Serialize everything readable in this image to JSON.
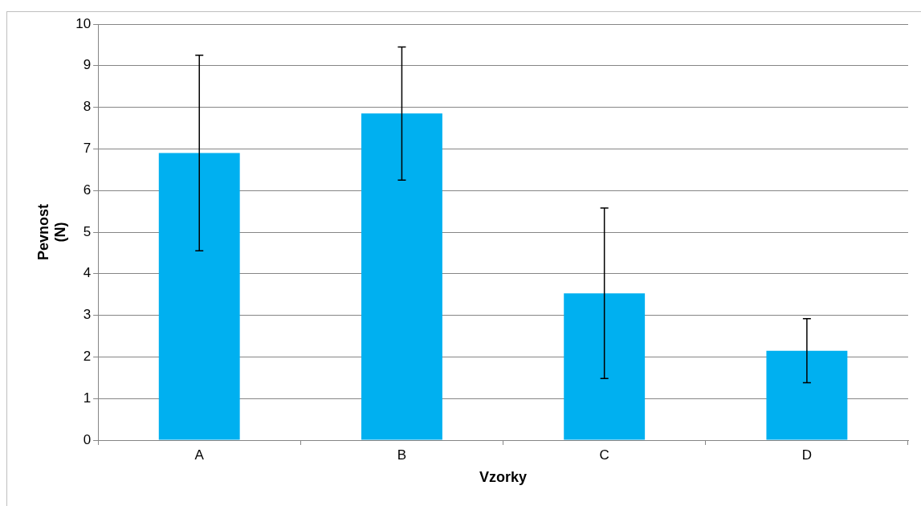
{
  "chart_data": {
    "type": "bar",
    "xlabel": "Vzorky",
    "ylabel": "Pevnost (N)",
    "categories": [
      "A",
      "B",
      "C",
      "D"
    ],
    "values": [
      6.9,
      7.85,
      3.53,
      2.15
    ],
    "errors": [
      2.35,
      1.6,
      2.05,
      0.77
    ],
    "color": "#00b0f0",
    "ylim": [
      0,
      10
    ],
    "yticks": [
      0,
      1,
      2,
      3,
      4,
      5,
      6,
      7,
      8,
      9,
      10
    ],
    "grid": "y",
    "legend": false
  }
}
